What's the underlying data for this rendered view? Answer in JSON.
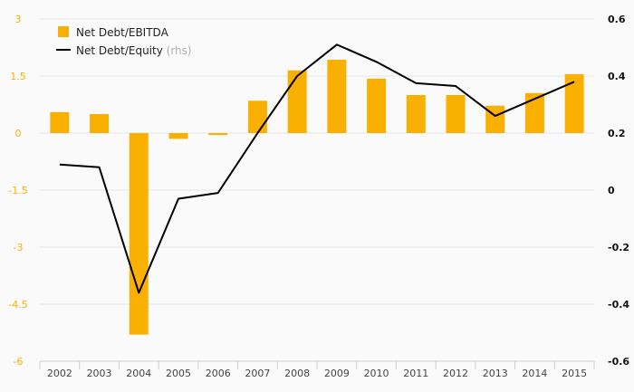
{
  "chart_data": {
    "type": "bar+line",
    "categories": [
      "2002",
      "2003",
      "2004",
      "2005",
      "2006",
      "2007",
      "2008",
      "2009",
      "2010",
      "2011",
      "2012",
      "2013",
      "2014",
      "2015"
    ],
    "series": [
      {
        "name": "Net Debt/EBITDA",
        "type": "bar",
        "axis": "left",
        "color": "#f9b000",
        "values": [
          0.55,
          0.5,
          -5.3,
          -0.15,
          -0.05,
          0.85,
          1.65,
          1.93,
          1.43,
          1.0,
          1.0,
          0.72,
          1.05,
          1.55
        ]
      },
      {
        "name": "Net Debt/Equity",
        "note": "(rhs)",
        "type": "line",
        "axis": "right",
        "color": "#000000",
        "values": [
          0.09,
          0.08,
          -0.36,
          -0.03,
          -0.01,
          0.2,
          0.4,
          0.51,
          0.45,
          0.375,
          0.365,
          0.26,
          0.32,
          0.38
        ]
      }
    ],
    "y_left": {
      "ylim": [
        -6,
        3
      ],
      "ticks": [
        "3",
        "1.5",
        "0",
        "-1.5",
        "-3",
        "-4.5",
        "-6"
      ],
      "tick_values": [
        3,
        1.5,
        0,
        -1.5,
        -3,
        -4.5,
        -6
      ],
      "tick_color": "#f9b000"
    },
    "y_right": {
      "ylim": [
        -0.6,
        0.6
      ],
      "ticks": [
        "0.6",
        "0.4",
        "0.2",
        "0",
        "-0.2",
        "-0.4",
        "-0.6"
      ],
      "tick_values": [
        0.6,
        0.4,
        0.2,
        0,
        -0.2,
        -0.4,
        -0.6
      ]
    },
    "legend_position": "top-left",
    "grid": true
  }
}
